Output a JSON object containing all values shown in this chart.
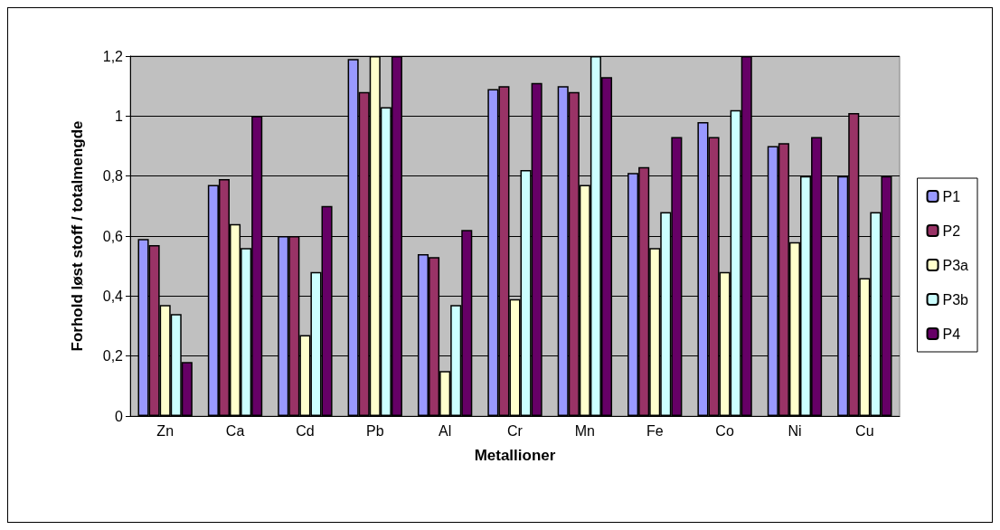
{
  "chart_data": {
    "type": "bar",
    "xlabel": "Metallioner",
    "ylabel": "Forhold løst stoff / totalmengde",
    "categories": [
      "Zn",
      "Ca",
      "Cd",
      "Pb",
      "Al",
      "Cr",
      "Mn",
      "Fe",
      "Co",
      "Ni",
      "Cu"
    ],
    "series": [
      {
        "name": "P1",
        "color": "#9999ff",
        "values": [
          0.59,
          0.77,
          0.6,
          1.19,
          0.54,
          1.09,
          1.1,
          0.81,
          0.98,
          0.9,
          0.8
        ]
      },
      {
        "name": "P2",
        "color": "#993366",
        "values": [
          0.57,
          0.79,
          0.6,
          1.08,
          0.53,
          1.1,
          1.08,
          0.83,
          0.93,
          0.91,
          1.01
        ]
      },
      {
        "name": "P3a",
        "color": "#ffffcc",
        "values": [
          0.37,
          0.64,
          0.27,
          1.2,
          0.15,
          0.39,
          0.77,
          0.56,
          0.48,
          0.58,
          0.46
        ]
      },
      {
        "name": "P3b",
        "color": "#ccffff",
        "values": [
          0.34,
          0.56,
          0.48,
          1.03,
          0.37,
          0.82,
          1.2,
          0.68,
          1.02,
          0.8,
          0.68
        ]
      },
      {
        "name": "P4",
        "color": "#660066",
        "values": [
          0.18,
          1.0,
          0.7,
          1.2,
          0.62,
          1.11,
          1.13,
          0.93,
          1.2,
          0.93,
          0.8
        ]
      }
    ],
    "ylim": [
      0,
      1.2
    ],
    "yticks": [
      0,
      {
        "value": 0.2,
        "label": "0,2"
      },
      {
        "value": 0.4,
        "label": "0,4"
      },
      {
        "value": 0.6,
        "label": "0,6"
      },
      {
        "value": 0.8,
        "label": "0,8"
      },
      1,
      {
        "value": 1.2,
        "label": "1,2"
      }
    ],
    "grid": "y",
    "legend": "right"
  }
}
